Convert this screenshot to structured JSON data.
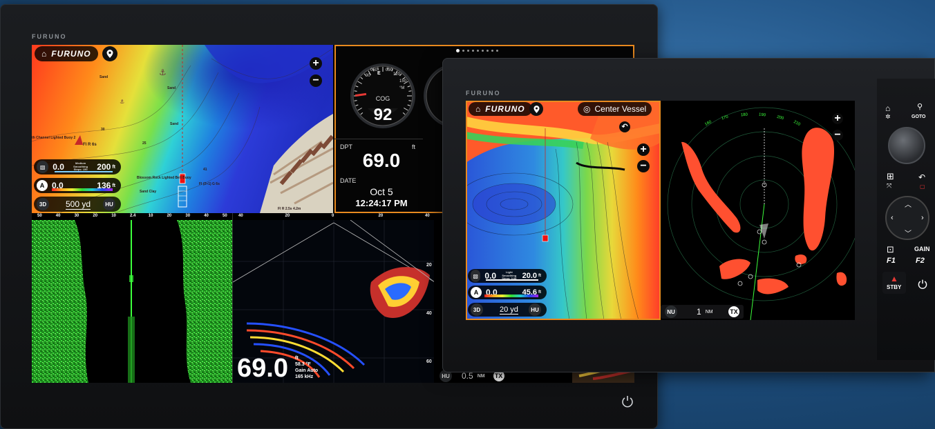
{
  "large_display": {
    "brand": "FURUNO",
    "chart": {
      "home_label": "FURUNO",
      "zoom_in": "+",
      "zoom_out": "−",
      "labels": {
        "sand_1": "Sand",
        "sand_2": "Sand",
        "sand_3": "Sand",
        "sand_4": "Sand Clay",
        "buoy": "th Channel Lighted Buoy 2",
        "fl_r": "Fl R 6s",
        "blossom": "Blossom Rock Lighted Bell Buoy",
        "fl_2": "Fl (2+1) G 6s",
        "fl_bottom": "Fl R 2.5s 4.2m",
        "depth_a": "30",
        "depth_b": "25",
        "depth_c": "41"
      },
      "smoothing_bar": {
        "value": "0.0",
        "title": "Medium Smoothing",
        "sub": "Steps: 150",
        "max": "200",
        "unit": "ft"
      },
      "depth_palette": {
        "badge": "A",
        "value": "0.0",
        "max": "136",
        "unit": "ft"
      },
      "scale": {
        "mode": "3D",
        "distance": "500 yd",
        "orientation": "HU"
      }
    },
    "instruments": {
      "dots_count": 9,
      "gauge_label": "COG",
      "gauge_value": "92",
      "gauge_ticks": [
        "30",
        "060",
        "090",
        "120",
        "150"
      ],
      "gauge_e": "E",
      "gauge_m": "°M",
      "dpt_label": "DPT",
      "dpt_unit": "ft",
      "dpt_value": "69.0",
      "date_label": "DATE",
      "date_value": "Oct 5",
      "time_value": "12:24:17 PM"
    },
    "sidescan": {
      "scale": [
        "50",
        "40",
        "30",
        "20",
        "10",
        "2.4",
        "10",
        "20",
        "30",
        "40",
        "50"
      ]
    },
    "fishfinder": {
      "scale": [
        "40",
        "20",
        "0",
        "20",
        "40"
      ],
      "right_scale": [
        "20",
        "40",
        "60"
      ],
      "depth_value": "69.0",
      "depth_unit": "ft",
      "temp": "58.3 °F",
      "gain": "Gain Auto",
      "freq": "165 kHz"
    },
    "radar_strip": {
      "orientation": "HU",
      "range": "0.5",
      "unit": "NM",
      "tx": "TX"
    }
  },
  "small_display": {
    "brand": "FURUNO",
    "chart": {
      "home_label": "FURUNO",
      "center_vessel": "Center Vessel",
      "zoom_in": "+",
      "zoom_out": "−",
      "smoothing_bar": {
        "value": "0.0",
        "title": "Light Smoothing",
        "sub": "Steps: 0.08",
        "max": "20.0",
        "unit": "ft"
      },
      "depth_palette": {
        "badge": "A",
        "value": "0.0",
        "max": "45.6",
        "unit": "ft"
      },
      "scale": {
        "mode": "3D",
        "distance": "20 yd",
        "orientation": "HU"
      }
    },
    "radar": {
      "orientation": "NU",
      "range": "1",
      "unit": "NM",
      "tx": "TX",
      "bearing_ticks": [
        "160",
        "170",
        "180",
        "190",
        "200",
        "210"
      ]
    },
    "controls": {
      "goto": "GOTO",
      "gain": "GAIN",
      "f1": "F1",
      "f2": "F2",
      "stby": "STBY"
    }
  },
  "colors": {
    "accent_orange": "#e98a1f",
    "radar_echo": "#ff5030",
    "sonar_green": "#2ecc2e"
  }
}
